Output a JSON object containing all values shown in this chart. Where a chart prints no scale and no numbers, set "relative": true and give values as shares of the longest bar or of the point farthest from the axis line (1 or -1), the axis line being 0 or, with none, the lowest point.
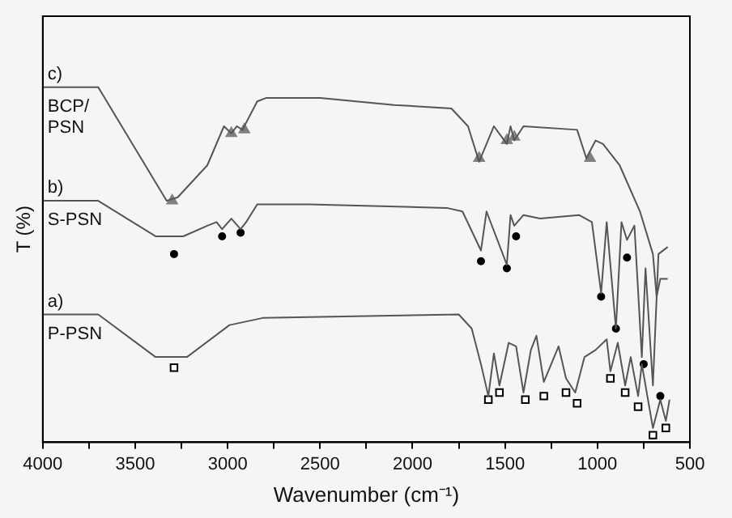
{
  "chart_data": {
    "type": "line",
    "relative": true,
    "xlabel": "Wavenumber (cm⁻¹)",
    "ylabel": "T (%)",
    "xlim": [
      4000,
      500
    ],
    "xticks": [
      4000,
      {
        "value": 3750,
        "label": null
      },
      3500,
      {
        "value": 3250,
        "label": null
      },
      3000,
      {
        "value": 2750,
        "label": null
      },
      2500,
      {
        "value": 2250,
        "label": null
      },
      2000,
      {
        "value": 1750,
        "label": null
      },
      1500,
      {
        "value": 1250,
        "label": null
      },
      1000,
      {
        "value": 750,
        "label": null
      },
      500
    ],
    "grid": false,
    "legend": false,
    "tick_labels": "x",
    "line_style": "solid",
    "annotations": [
      "c)",
      "b)",
      "a)"
    ],
    "series": [
      {
        "name": "BCP/PSN",
        "color": "#555555",
        "marker": "none",
        "x": [
          4000,
          3700,
          3330,
          3270,
          3110,
          3020,
          2980,
          2950,
          2920,
          2840,
          2790,
          2500,
          2100,
          1790,
          1700,
          1640,
          1560,
          1490,
          1470,
          1450,
          1400,
          1110,
          1060,
          1010,
          970,
          880,
          770,
          700,
          680,
          660,
          620
        ],
        "values": [
          1.0,
          1.0,
          0.68,
          0.69,
          0.78,
          0.89,
          0.87,
          0.89,
          0.88,
          0.96,
          0.97,
          0.97,
          0.95,
          0.94,
          0.89,
          0.79,
          0.89,
          0.84,
          0.89,
          0.85,
          0.89,
          0.88,
          0.8,
          0.85,
          0.84,
          0.78,
          0.65,
          0.53,
          0.41,
          0.46,
          0.46
        ]
      },
      {
        "name": "S-PSN",
        "color": "#555555",
        "marker": "none",
        "x": [
          4000,
          3700,
          3390,
          3240,
          3110,
          3060,
          3030,
          2980,
          2930,
          2900,
          2840,
          2560,
          1815,
          1730,
          1630,
          1600,
          1490,
          1470,
          1450,
          1400,
          1310,
          1100,
          1030,
          980,
          950,
          900,
          870,
          840,
          800,
          760,
          740,
          700,
          670,
          620
        ],
        "values": [
          0.68,
          0.68,
          0.58,
          0.58,
          0.61,
          0.62,
          0.6,
          0.63,
          0.6,
          0.62,
          0.67,
          0.67,
          0.66,
          0.65,
          0.54,
          0.65,
          0.5,
          0.64,
          0.61,
          0.64,
          0.63,
          0.64,
          0.62,
          0.42,
          0.62,
          0.32,
          0.62,
          0.57,
          0.61,
          0.24,
          0.49,
          0.16,
          0.53,
          0.55
        ]
      },
      {
        "name": "P-PSN",
        "color": "#555555",
        "marker": "none",
        "x": [
          4000,
          3700,
          3390,
          3220,
          2990,
          2810,
          1750,
          1680,
          1630,
          1590,
          1560,
          1530,
          1480,
          1440,
          1400,
          1360,
          1330,
          1290,
          1250,
          1210,
          1170,
          1120,
          1070,
          1010,
          950,
          930,
          890,
          850,
          820,
          780,
          760,
          700,
          660,
          630,
          610
        ],
        "values": [
          0.36,
          0.36,
          0.24,
          0.24,
          0.33,
          0.35,
          0.36,
          0.32,
          0.22,
          0.13,
          0.25,
          0.16,
          0.28,
          0.27,
          0.14,
          0.26,
          0.3,
          0.17,
          0.22,
          0.27,
          0.18,
          0.14,
          0.24,
          0.26,
          0.29,
          0.2,
          0.28,
          0.16,
          0.24,
          0.13,
          0.22,
          0.04,
          0.12,
          0.06,
          0.12
        ]
      },
      {
        "color": "#808080",
        "type": "scatter",
        "marker": "triangle",
        "x": [
          3300,
          2980,
          2910,
          1640,
          1490,
          1450,
          1040
        ],
        "values": [
          0.68,
          0.87,
          0.88,
          0.8,
          0.85,
          0.86,
          0.8
        ]
      },
      {
        "color": "#000000",
        "type": "scatter",
        "marker": "circle",
        "x": [
          3290,
          3030,
          2930,
          1630,
          1490,
          1440,
          980,
          900,
          840,
          750,
          660
        ],
        "values": [
          0.53,
          0.58,
          0.59,
          0.51,
          0.49,
          0.58,
          0.41,
          0.32,
          0.52,
          0.22,
          0.13
        ]
      },
      {
        "color": "#000000",
        "type": "scatter",
        "marker": "square",
        "x": [
          3290,
          1590,
          1530,
          1390,
          1290,
          1170,
          1110,
          930,
          850,
          780,
          700,
          630
        ],
        "values": [
          0.21,
          0.12,
          0.14,
          0.12,
          0.13,
          0.14,
          0.11,
          0.18,
          0.14,
          0.1,
          0.02,
          0.04
        ]
      }
    ]
  }
}
